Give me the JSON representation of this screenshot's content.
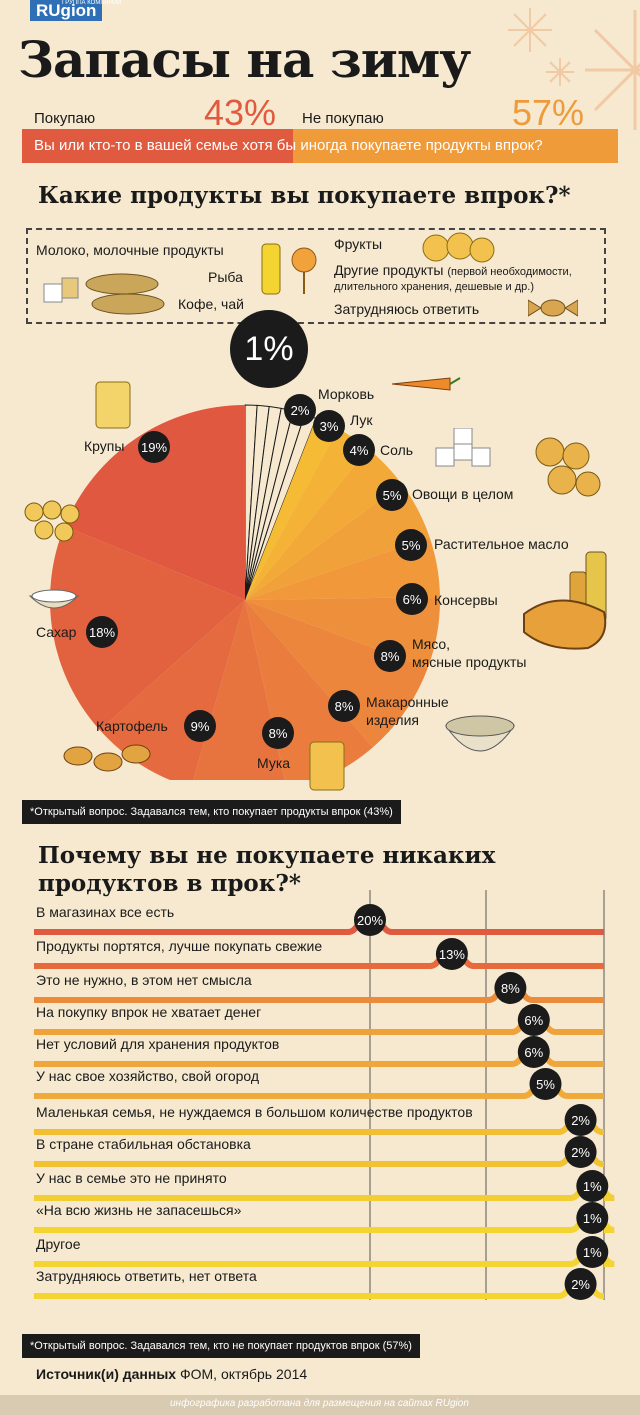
{
  "brand": {
    "logo": "RUgion",
    "logo_sub": "ГРУППА КОМПАНИЙ",
    "footer": "инфографика разработана для размещения на сайтах RUgion"
  },
  "title": "Запасы на зиму",
  "q1": {
    "yes_label": "Покупаю",
    "yes_pct": "43%",
    "no_label": "Не покупаю",
    "no_pct": "57%",
    "question": "Вы или кто-то в вашей семье хотя бы иногда покупаете продукты впрок?",
    "colors": {
      "yes": "#e05a3f",
      "no": "#ef9b3a"
    }
  },
  "q2_title": "Какие продукты вы покупаете впрок?*",
  "legend": {
    "left": [
      "Молоко, молочные продукты",
      "Рыба",
      "Кофе, чай"
    ],
    "right_1": "Фрукты",
    "right_2": "Другие продукты",
    "right_2_note": "(первой необходимости,",
    "right_2_note2": "длительного хранения, дешевые и др.)",
    "right_3": "Затрудняюсь ответить",
    "one_pct": "1%"
  },
  "chart_data": [
    {
      "type": "pie",
      "title": "Какие продукты вы покупаете впрок?*",
      "slices": [
        {
          "label": "Молоко, молочные продукты",
          "value": 1
        },
        {
          "label": "Рыба",
          "value": 1
        },
        {
          "label": "Кофе, чай",
          "value": 1
        },
        {
          "label": "Фрукты",
          "value": 1
        },
        {
          "label": "Другие продукты",
          "value": 1
        },
        {
          "label": "Затрудняюсь ответить",
          "value": 1
        },
        {
          "label": "Морковь",
          "value": 2
        },
        {
          "label": "Лук",
          "value": 3
        },
        {
          "label": "Соль",
          "value": 4
        },
        {
          "label": "Овощи в целом",
          "value": 5
        },
        {
          "label": "Растительное масло",
          "value": 5
        },
        {
          "label": "Консервы",
          "value": 6
        },
        {
          "label": "Мясо, мясные продукты",
          "value": 8
        },
        {
          "label": "Макаронные изделия",
          "value": 8
        },
        {
          "label": "Мука",
          "value": 8
        },
        {
          "label": "Картофель",
          "value": 9
        },
        {
          "label": "Сахар",
          "value": 18
        },
        {
          "label": "Крупы",
          "value": 19
        }
      ]
    },
    {
      "type": "bar",
      "title": "Почему вы не покупаете никаких продуктов в прок?*",
      "categories": [
        "В магазинах все есть",
        "Продукты портятся, лучше покупать свежие",
        "Это не нужно, в этом нет смысла",
        "На покупку впрок не хватает денег",
        "Нет условий для хранения продуктов",
        "У нас свое хозяйство, свой огород",
        "Маленькая семья, не нуждаемся в большом количестве продуктов",
        "В стране стабильная обстановка",
        "У нас в семье это не принято",
        "«На всю жизнь не запасешься»",
        "Другое",
        "Затрудняюсь ответить, нет ответа"
      ],
      "values": [
        20,
        13,
        8,
        6,
        6,
        5,
        2,
        2,
        1,
        1,
        1,
        2
      ]
    }
  ],
  "pie_labels": {
    "carrot": "Морковь",
    "onion": "Лук",
    "salt": "Соль",
    "veg": "Овощи в целом",
    "oil": "Растительное масло",
    "cans": "Консервы",
    "meat1": "Мясо,",
    "meat2": "мясные продукты",
    "pasta1": "Макаронные",
    "pasta2": "изделия",
    "flour": "Мука",
    "potato": "Картофель",
    "sugar": "Сахар",
    "grain": "Крупы"
  },
  "pie_pcts": {
    "carrot": "2%",
    "onion": "3%",
    "salt": "4%",
    "veg": "5%",
    "oil": "5%",
    "cans": "6%",
    "meat": "8%",
    "pasta": "8%",
    "flour": "8%",
    "potato": "9%",
    "sugar": "18%",
    "grain": "19%"
  },
  "note1": "*Открытый вопрос. Задавался тем, кто покупает продукты впрок (43%)",
  "q3_title_1": "Почему вы не покупаете никаких",
  "q3_title_2": "продуктов в прок?*",
  "bar_pcts": [
    "20%",
    "13%",
    "8%",
    "6%",
    "6%",
    "5%",
    "2%",
    "2%",
    "1%",
    "1%",
    "1%",
    "2%"
  ],
  "note2": "*Открытый вопрос. Задавался тем, кто не покупает продуктов впрок (57%)",
  "source_label": "Источник(и) данных",
  "source_value": "ФОМ, октябрь 2014",
  "colors": {
    "red": "#e05a3f",
    "orange": "#ef9b3a",
    "yellow": "#f3d431",
    "bg": "#f6e9cf"
  }
}
